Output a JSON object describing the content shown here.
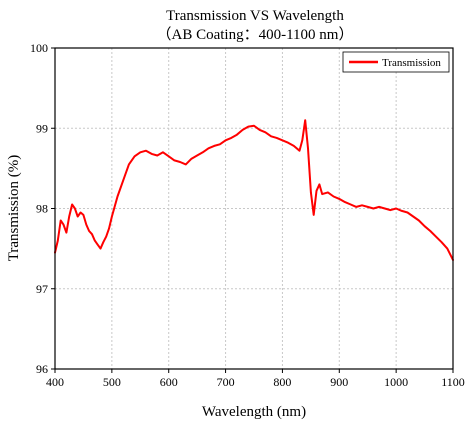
{
  "chart_data": {
    "type": "line",
    "title": "Transmission VS Wavelength",
    "subtitle": "（AB Coating：400-1100 nm）",
    "xlabel": "Wavelength (nm)",
    "ylabel": "Transmission (%)",
    "xlim": [
      400,
      1100
    ],
    "ylim": [
      96,
      100
    ],
    "xticks": [
      400,
      500,
      600,
      700,
      800,
      900,
      1000,
      1100
    ],
    "yticks": [
      96,
      97,
      98,
      99,
      100
    ],
    "grid": true,
    "legend_position": "top-right",
    "series": [
      {
        "name": "Transmission",
        "color": "#ff0000",
        "x": [
          400,
          405,
          410,
          415,
          420,
          425,
          430,
          435,
          440,
          445,
          450,
          455,
          460,
          465,
          470,
          475,
          480,
          485,
          490,
          495,
          500,
          510,
          520,
          530,
          540,
          550,
          560,
          570,
          580,
          590,
          600,
          610,
          620,
          630,
          640,
          650,
          660,
          670,
          680,
          690,
          700,
          710,
          720,
          730,
          740,
          750,
          760,
          770,
          780,
          790,
          800,
          810,
          820,
          830,
          835,
          840,
          845,
          850,
          855,
          860,
          865,
          870,
          880,
          890,
          900,
          910,
          920,
          930,
          940,
          950,
          960,
          970,
          980,
          990,
          1000,
          1010,
          1020,
          1030,
          1040,
          1050,
          1060,
          1070,
          1080,
          1090,
          1100
        ],
        "y": [
          97.45,
          97.6,
          97.85,
          97.8,
          97.7,
          97.9,
          98.05,
          98.0,
          97.9,
          97.95,
          97.92,
          97.8,
          97.72,
          97.68,
          97.6,
          97.55,
          97.5,
          97.58,
          97.65,
          97.75,
          97.9,
          98.15,
          98.35,
          98.55,
          98.65,
          98.7,
          98.72,
          98.68,
          98.66,
          98.7,
          98.65,
          98.6,
          98.58,
          98.55,
          98.62,
          98.66,
          98.7,
          98.75,
          98.78,
          98.8,
          98.85,
          98.88,
          98.92,
          98.98,
          99.02,
          99.03,
          98.98,
          98.95,
          98.9,
          98.88,
          98.85,
          98.82,
          98.78,
          98.72,
          98.85,
          99.1,
          98.75,
          98.2,
          97.92,
          98.22,
          98.3,
          98.18,
          98.2,
          98.15,
          98.12,
          98.08,
          98.05,
          98.02,
          98.04,
          98.02,
          98.0,
          98.02,
          98.0,
          97.98,
          98.0,
          97.97,
          97.95,
          97.9,
          97.85,
          97.78,
          97.72,
          97.65,
          97.58,
          97.5,
          97.36
        ]
      }
    ]
  }
}
